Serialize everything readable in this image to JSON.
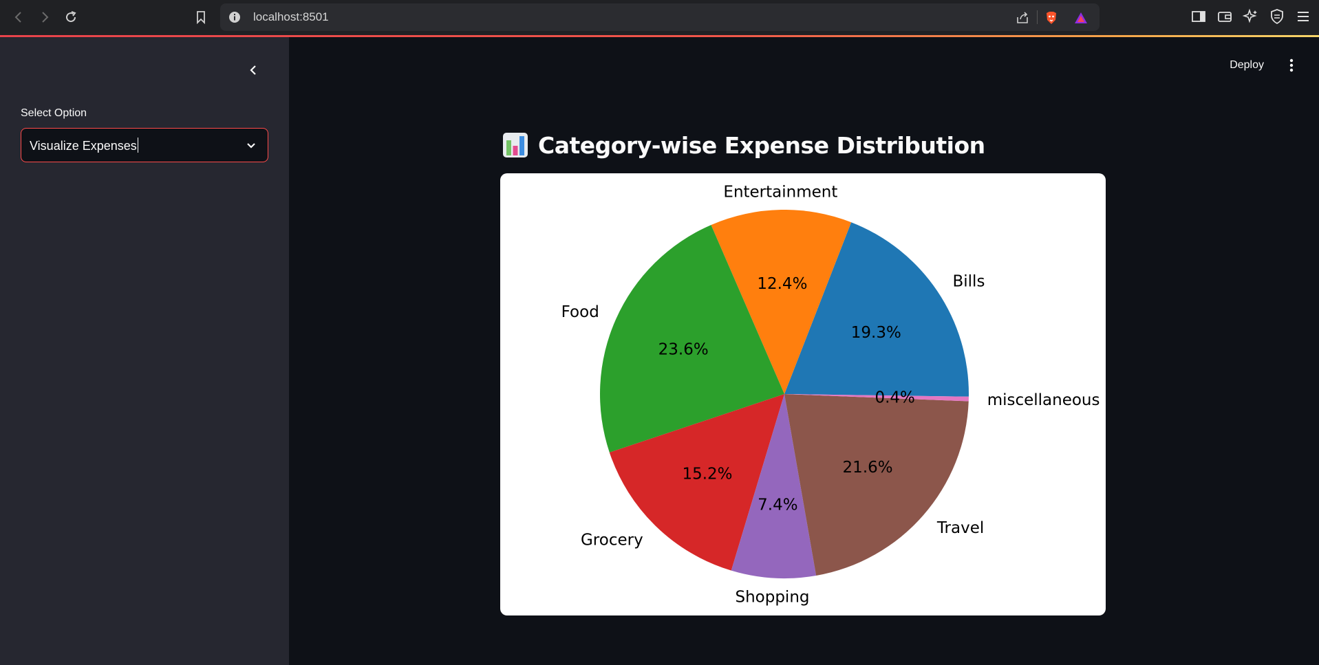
{
  "browser": {
    "url": "localhost:8501",
    "icons": [
      "back-icon",
      "forward-icon",
      "reload-icon",
      "bookmark-icon",
      "info-icon",
      "share-icon",
      "brave-shield-icon",
      "brave-rewards-icon",
      "sidebar-icon",
      "wallet-icon",
      "leo-icon",
      "vpn-icon",
      "menu-icon"
    ]
  },
  "sidebar": {
    "select_label": "Select Option",
    "select_value": "Visualize Expenses"
  },
  "header": {
    "deploy_label": "Deploy"
  },
  "main": {
    "title": "Category-wise Expense Distribution",
    "title_icon": "bar-chart-icon"
  },
  "chart_data": {
    "type": "pie",
    "title": "",
    "categories": [
      "Bills",
      "miscellaneous",
      "Travel",
      "Shopping",
      "Grocery",
      "Food",
      "Entertainment"
    ],
    "values": [
      19.3,
      0.4,
      21.6,
      7.4,
      15.2,
      23.6,
      12.4
    ],
    "value_labels": [
      "19.3%",
      "0.4%",
      "21.6%",
      "7.4%",
      "15.2%",
      "23.6%",
      "12.4%"
    ],
    "colors": [
      "#1f77b4",
      "#e377c2",
      "#8c564b",
      "#9467bd",
      "#d62728",
      "#2ca02c",
      "#ff7f0e"
    ],
    "start_direction": "clockwise from 3 o'clock (reversed counterclockwise wedge order)"
  }
}
